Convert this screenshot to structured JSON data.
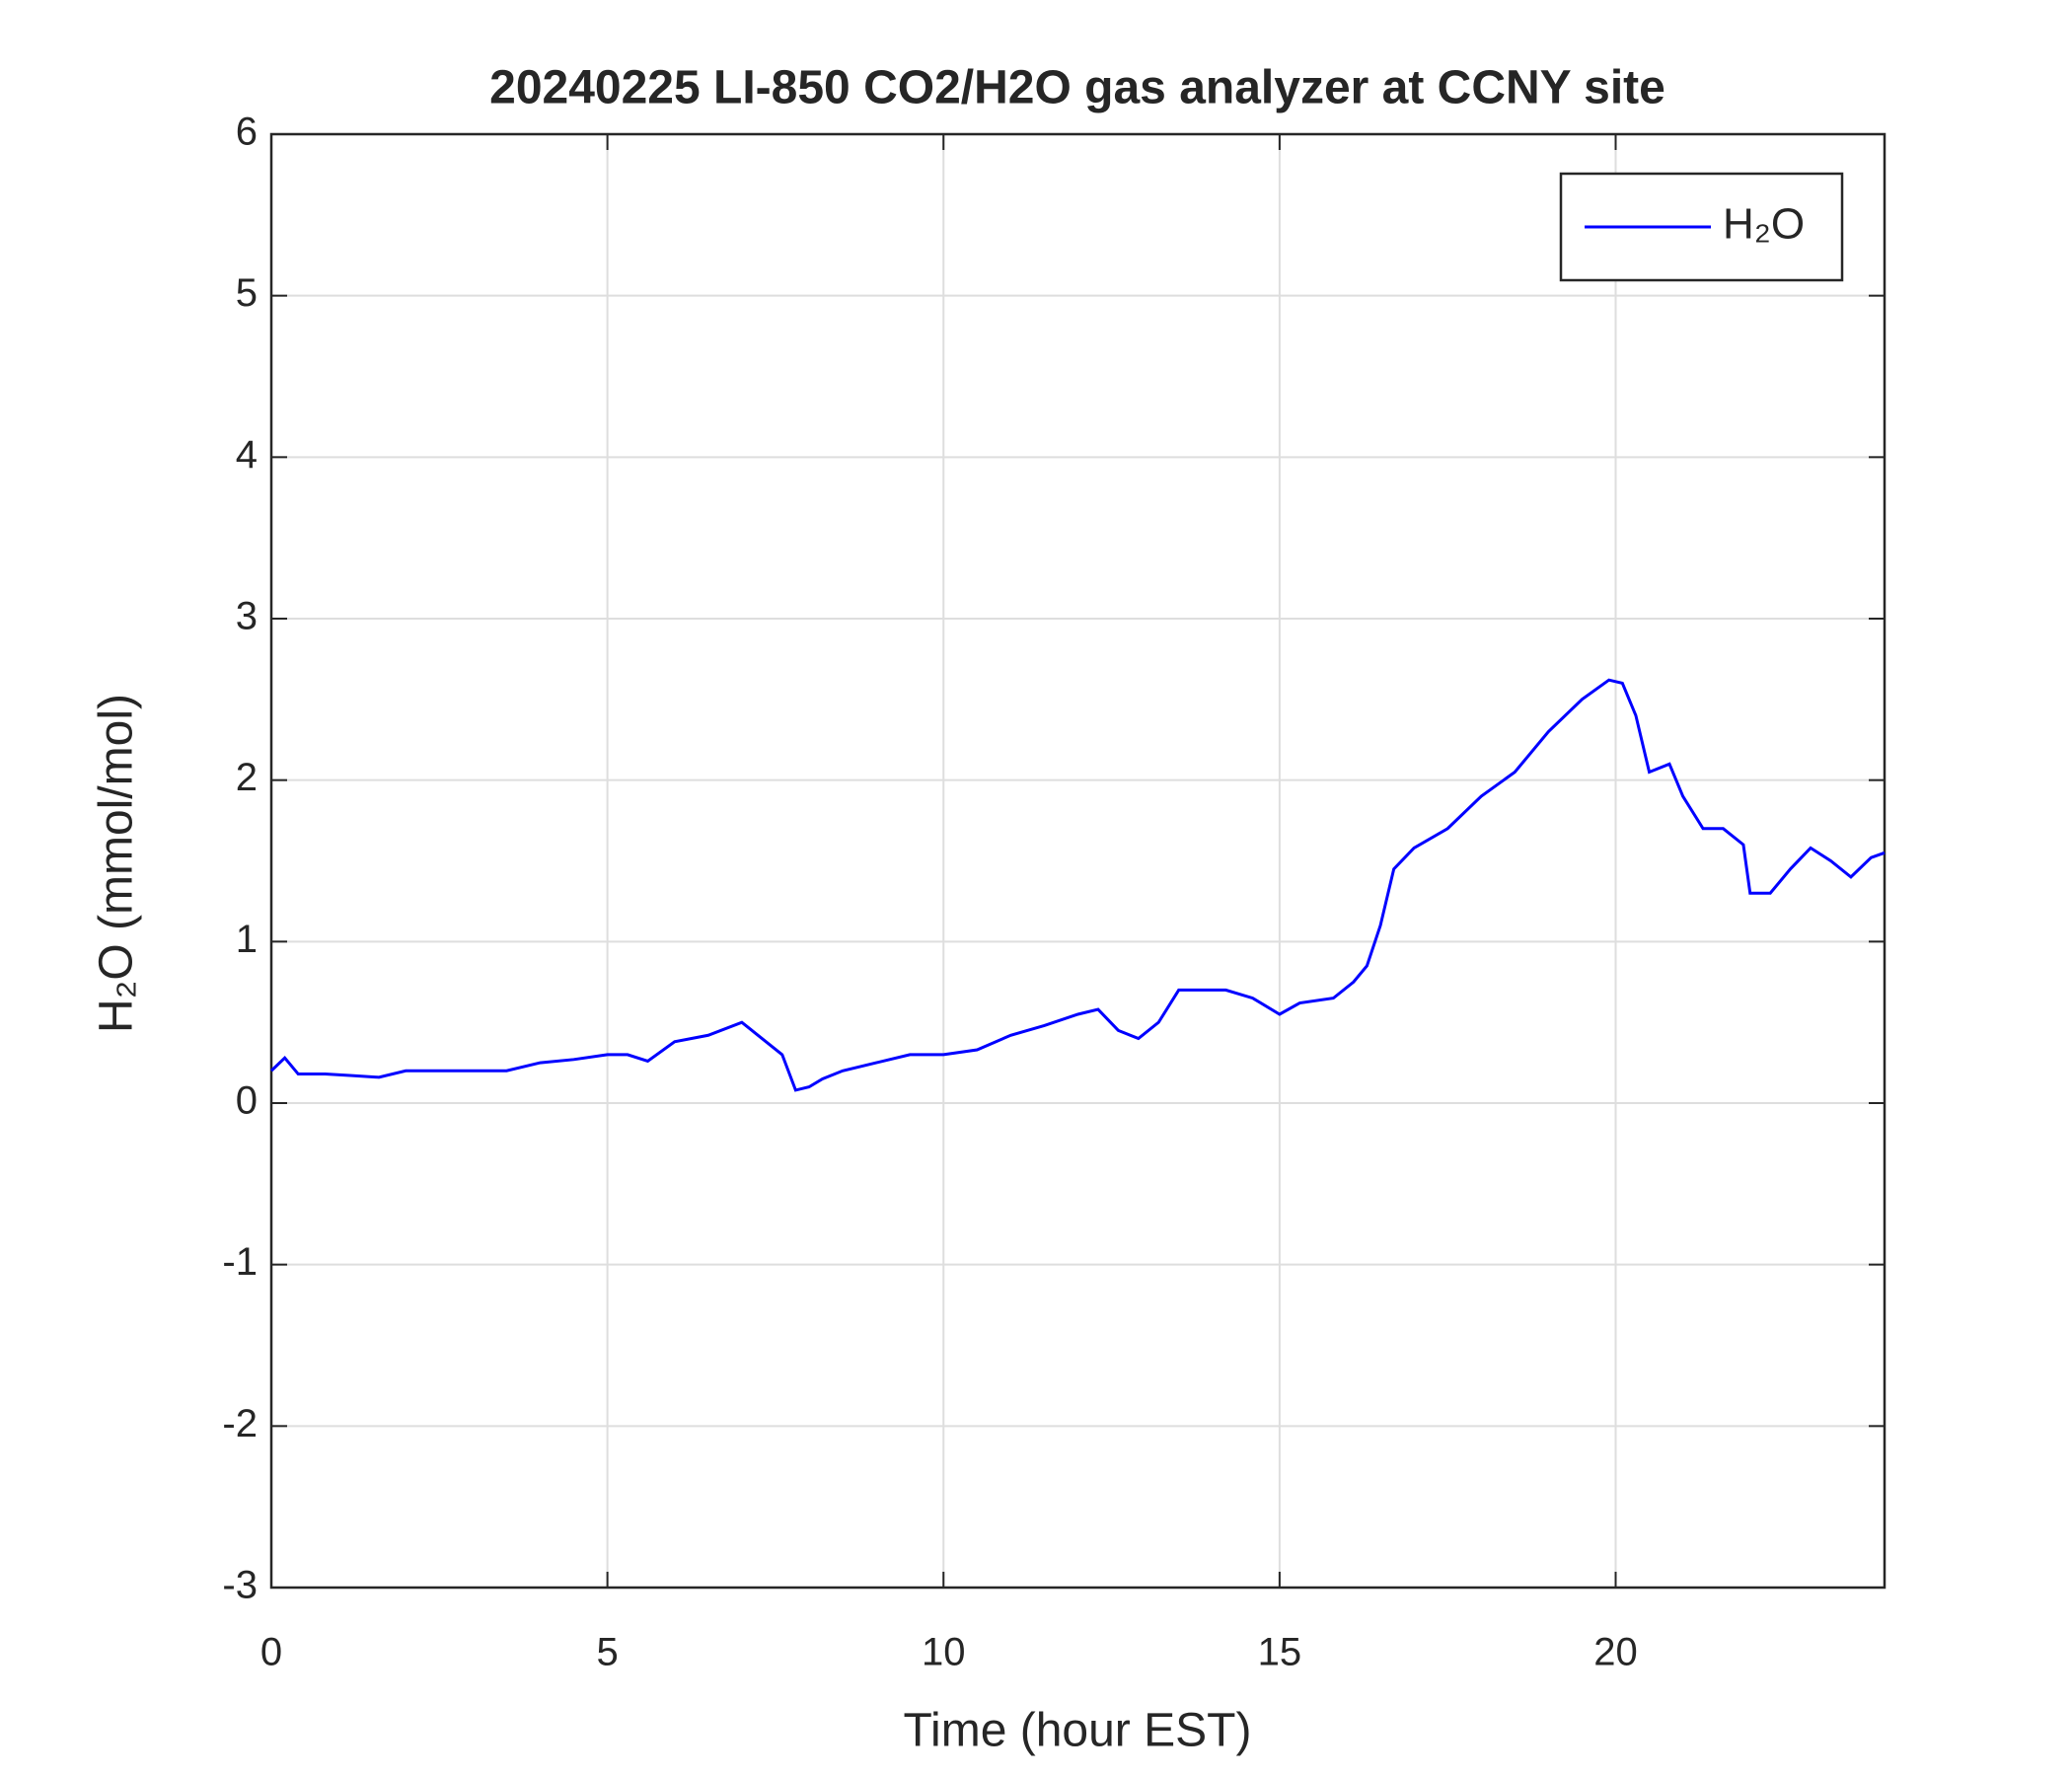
{
  "chart_data": {
    "type": "line",
    "title": "20240225 LI-850 CO2/H2O gas analyzer at CCNY site",
    "x_label": "Time (hour EST)",
    "y_label": "H₂O (mmol/mol)",
    "xlim": [
      0,
      24
    ],
    "xticks": [
      0,
      5,
      10,
      15,
      20
    ],
    "ylim": [
      -3,
      6
    ],
    "yticks": [
      -3,
      -2,
      -1,
      0,
      1,
      2,
      3,
      4,
      5,
      6
    ],
    "grid": true,
    "legend": "top-right",
    "x": [
      0,
      0.2,
      0.4,
      0.8,
      1.2,
      1.6,
      2,
      2.5,
      3,
      3.5,
      4,
      4.5,
      5,
      5.3,
      5.6,
      6,
      6.5,
      7,
      7.3,
      7.6,
      7.8,
      8,
      8.2,
      8.5,
      9,
      9.5,
      10,
      10.5,
      11,
      11.5,
      12,
      12.3,
      12.6,
      12.9,
      13.2,
      13.5,
      13.8,
      14.2,
      14.6,
      15,
      15.3,
      15.8,
      16.1,
      16.3,
      16.5,
      16.7,
      17,
      17.5,
      18,
      18.5,
      19,
      19.5,
      19.9,
      20.1,
      20.3,
      20.5,
      20.8,
      21,
      21.3,
      21.6,
      21.9,
      22,
      22.3,
      22.6,
      22.9,
      23.2,
      23.5,
      23.8,
      24
    ],
    "series": [
      {
        "name": "H₂O",
        "color": "#0000ff",
        "values": [
          0.2,
          0.28,
          0.18,
          0.18,
          0.17,
          0.16,
          0.2,
          0.2,
          0.2,
          0.2,
          0.25,
          0.27,
          0.3,
          0.3,
          0.26,
          0.38,
          0.42,
          0.5,
          0.4,
          0.3,
          0.08,
          0.1,
          0.15,
          0.2,
          0.25,
          0.3,
          0.3,
          0.33,
          0.42,
          0.48,
          0.55,
          0.58,
          0.45,
          0.4,
          0.5,
          0.7,
          0.7,
          0.7,
          0.65,
          0.55,
          0.62,
          0.65,
          0.75,
          0.85,
          1.1,
          1.45,
          1.58,
          1.7,
          1.9,
          2.05,
          2.3,
          2.5,
          2.62,
          2.6,
          2.4,
          2.05,
          2.1,
          1.9,
          1.7,
          1.7,
          1.6,
          1.3,
          1.3,
          1.45,
          1.58,
          1.5,
          1.4,
          1.52,
          1.55
        ]
      }
    ]
  }
}
